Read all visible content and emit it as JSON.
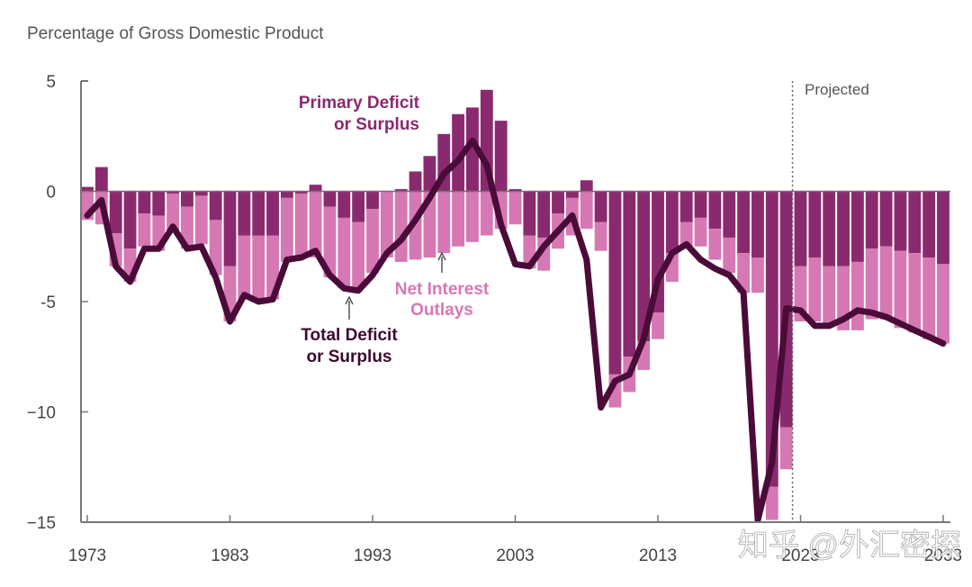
{
  "chart_data": {
    "type": "bar",
    "subtitle": "Percentage of Gross Domestic Product",
    "xlabel": "",
    "ylabel": "Percentage of Gross Domestic Product",
    "ylim": [
      -15,
      5
    ],
    "yticks": [
      5,
      0,
      -5,
      -10,
      -15
    ],
    "ytick_labels": [
      "5",
      "0",
      "-5",
      "−10",
      "−15"
    ],
    "xticks": [
      1973,
      1983,
      1993,
      2003,
      2013,
      2023,
      2033
    ],
    "xlim": [
      1973,
      2033
    ],
    "projected_start": 2023,
    "projected_label": "Projected",
    "grid": false,
    "legend": "inline annotations",
    "colors": {
      "primary": "#8a2a6e",
      "interest": "#d678b4",
      "total": "#4a0b39",
      "axis": "#777777"
    },
    "annotations": {
      "primary": [
        "Primary Deficit",
        "or Surplus"
      ],
      "interest": [
        "Net Interest",
        "Outlays"
      ],
      "total": [
        "Total Deficit",
        "or Surplus"
      ]
    },
    "years": [
      1973,
      1974,
      1975,
      1976,
      1977,
      1978,
      1979,
      1980,
      1981,
      1982,
      1983,
      1984,
      1985,
      1986,
      1987,
      1988,
      1989,
      1990,
      1991,
      1992,
      1993,
      1994,
      1995,
      1996,
      1997,
      1998,
      1999,
      2000,
      2001,
      2002,
      2003,
      2004,
      2005,
      2006,
      2007,
      2008,
      2009,
      2010,
      2011,
      2012,
      2013,
      2014,
      2015,
      2016,
      2017,
      2018,
      2019,
      2020,
      2021,
      2022,
      2023,
      2024,
      2025,
      2026,
      2027,
      2028,
      2029,
      2030,
      2031,
      2032,
      2033
    ],
    "series": [
      {
        "name": "Primary Deficit or Surplus",
        "values": [
          0.2,
          1.1,
          -1.9,
          -2.6,
          -1.0,
          -1.1,
          -0.1,
          -0.7,
          -0.2,
          -1.3,
          -3.4,
          -2.0,
          -2.0,
          -2.0,
          -0.3,
          -0.1,
          0.3,
          -0.7,
          -1.2,
          -1.4,
          -0.8,
          0.0,
          0.1,
          0.9,
          1.6,
          2.6,
          3.5,
          3.8,
          4.6,
          3.2,
          0.1,
          -2.0,
          -2.1,
          -1.0,
          -0.3,
          0.5,
          -1.4,
          -8.3,
          -7.5,
          -6.8,
          -5.5,
          -2.8,
          -1.4,
          -1.2,
          -1.7,
          -2.1,
          -2.8,
          -3.0,
          -13.4,
          -10.7,
          -3.4,
          -3.0,
          -3.4,
          -3.4,
          -3.2,
          -2.6,
          -2.5,
          -2.7,
          -2.8,
          -3.0,
          -3.3
        ]
      },
      {
        "name": "Net Interest Outlays",
        "values": [
          -1.3,
          -1.5,
          -1.5,
          -1.5,
          -1.5,
          -1.6,
          -1.7,
          -1.9,
          -2.2,
          -2.5,
          -2.5,
          -2.9,
          -3.0,
          -2.9,
          -2.9,
          -2.9,
          -3.0,
          -3.2,
          -3.2,
          -3.0,
          -2.9,
          -3.0,
          -3.2,
          -3.1,
          -3.0,
          -2.8,
          -2.5,
          -2.3,
          -2.0,
          -1.7,
          -1.5,
          -1.5,
          -1.5,
          -1.6,
          -1.7,
          -1.7,
          -1.3,
          -1.5,
          -1.6,
          -1.3,
          -1.2,
          -1.3,
          -1.2,
          -1.3,
          -1.4,
          -1.6,
          -1.8,
          -1.6,
          -1.5,
          -1.9,
          -2.5,
          -2.9,
          -2.7,
          -2.9,
          -3.1,
          -3.2,
          -3.3,
          -3.5,
          -3.6,
          -3.7,
          -3.6
        ]
      },
      {
        "name": "Total Deficit or Surplus",
        "values": [
          -1.1,
          -0.4,
          -3.4,
          -4.1,
          -2.6,
          -2.6,
          -1.6,
          -2.6,
          -2.5,
          -3.9,
          -5.9,
          -4.7,
          -5.0,
          -4.9,
          -3.1,
          -3.0,
          -2.7,
          -3.8,
          -4.4,
          -4.5,
          -3.8,
          -2.8,
          -2.2,
          -1.3,
          -0.3,
          0.8,
          1.4,
          2.3,
          1.2,
          -1.5,
          -3.3,
          -3.4,
          -2.5,
          -1.8,
          -1.1,
          -3.1,
          -9.8,
          -8.6,
          -8.3,
          -6.7,
          -4.0,
          -2.8,
          -2.4,
          -3.1,
          -3.5,
          -3.8,
          -4.6,
          -14.9,
          -12.3,
          -5.3,
          -5.4,
          -6.1,
          -6.1,
          -5.8,
          -5.4,
          -5.5,
          -5.7,
          -6.0,
          -6.3,
          -6.6,
          -6.9
        ]
      }
    ]
  },
  "watermark": "知乎 @外汇密探"
}
